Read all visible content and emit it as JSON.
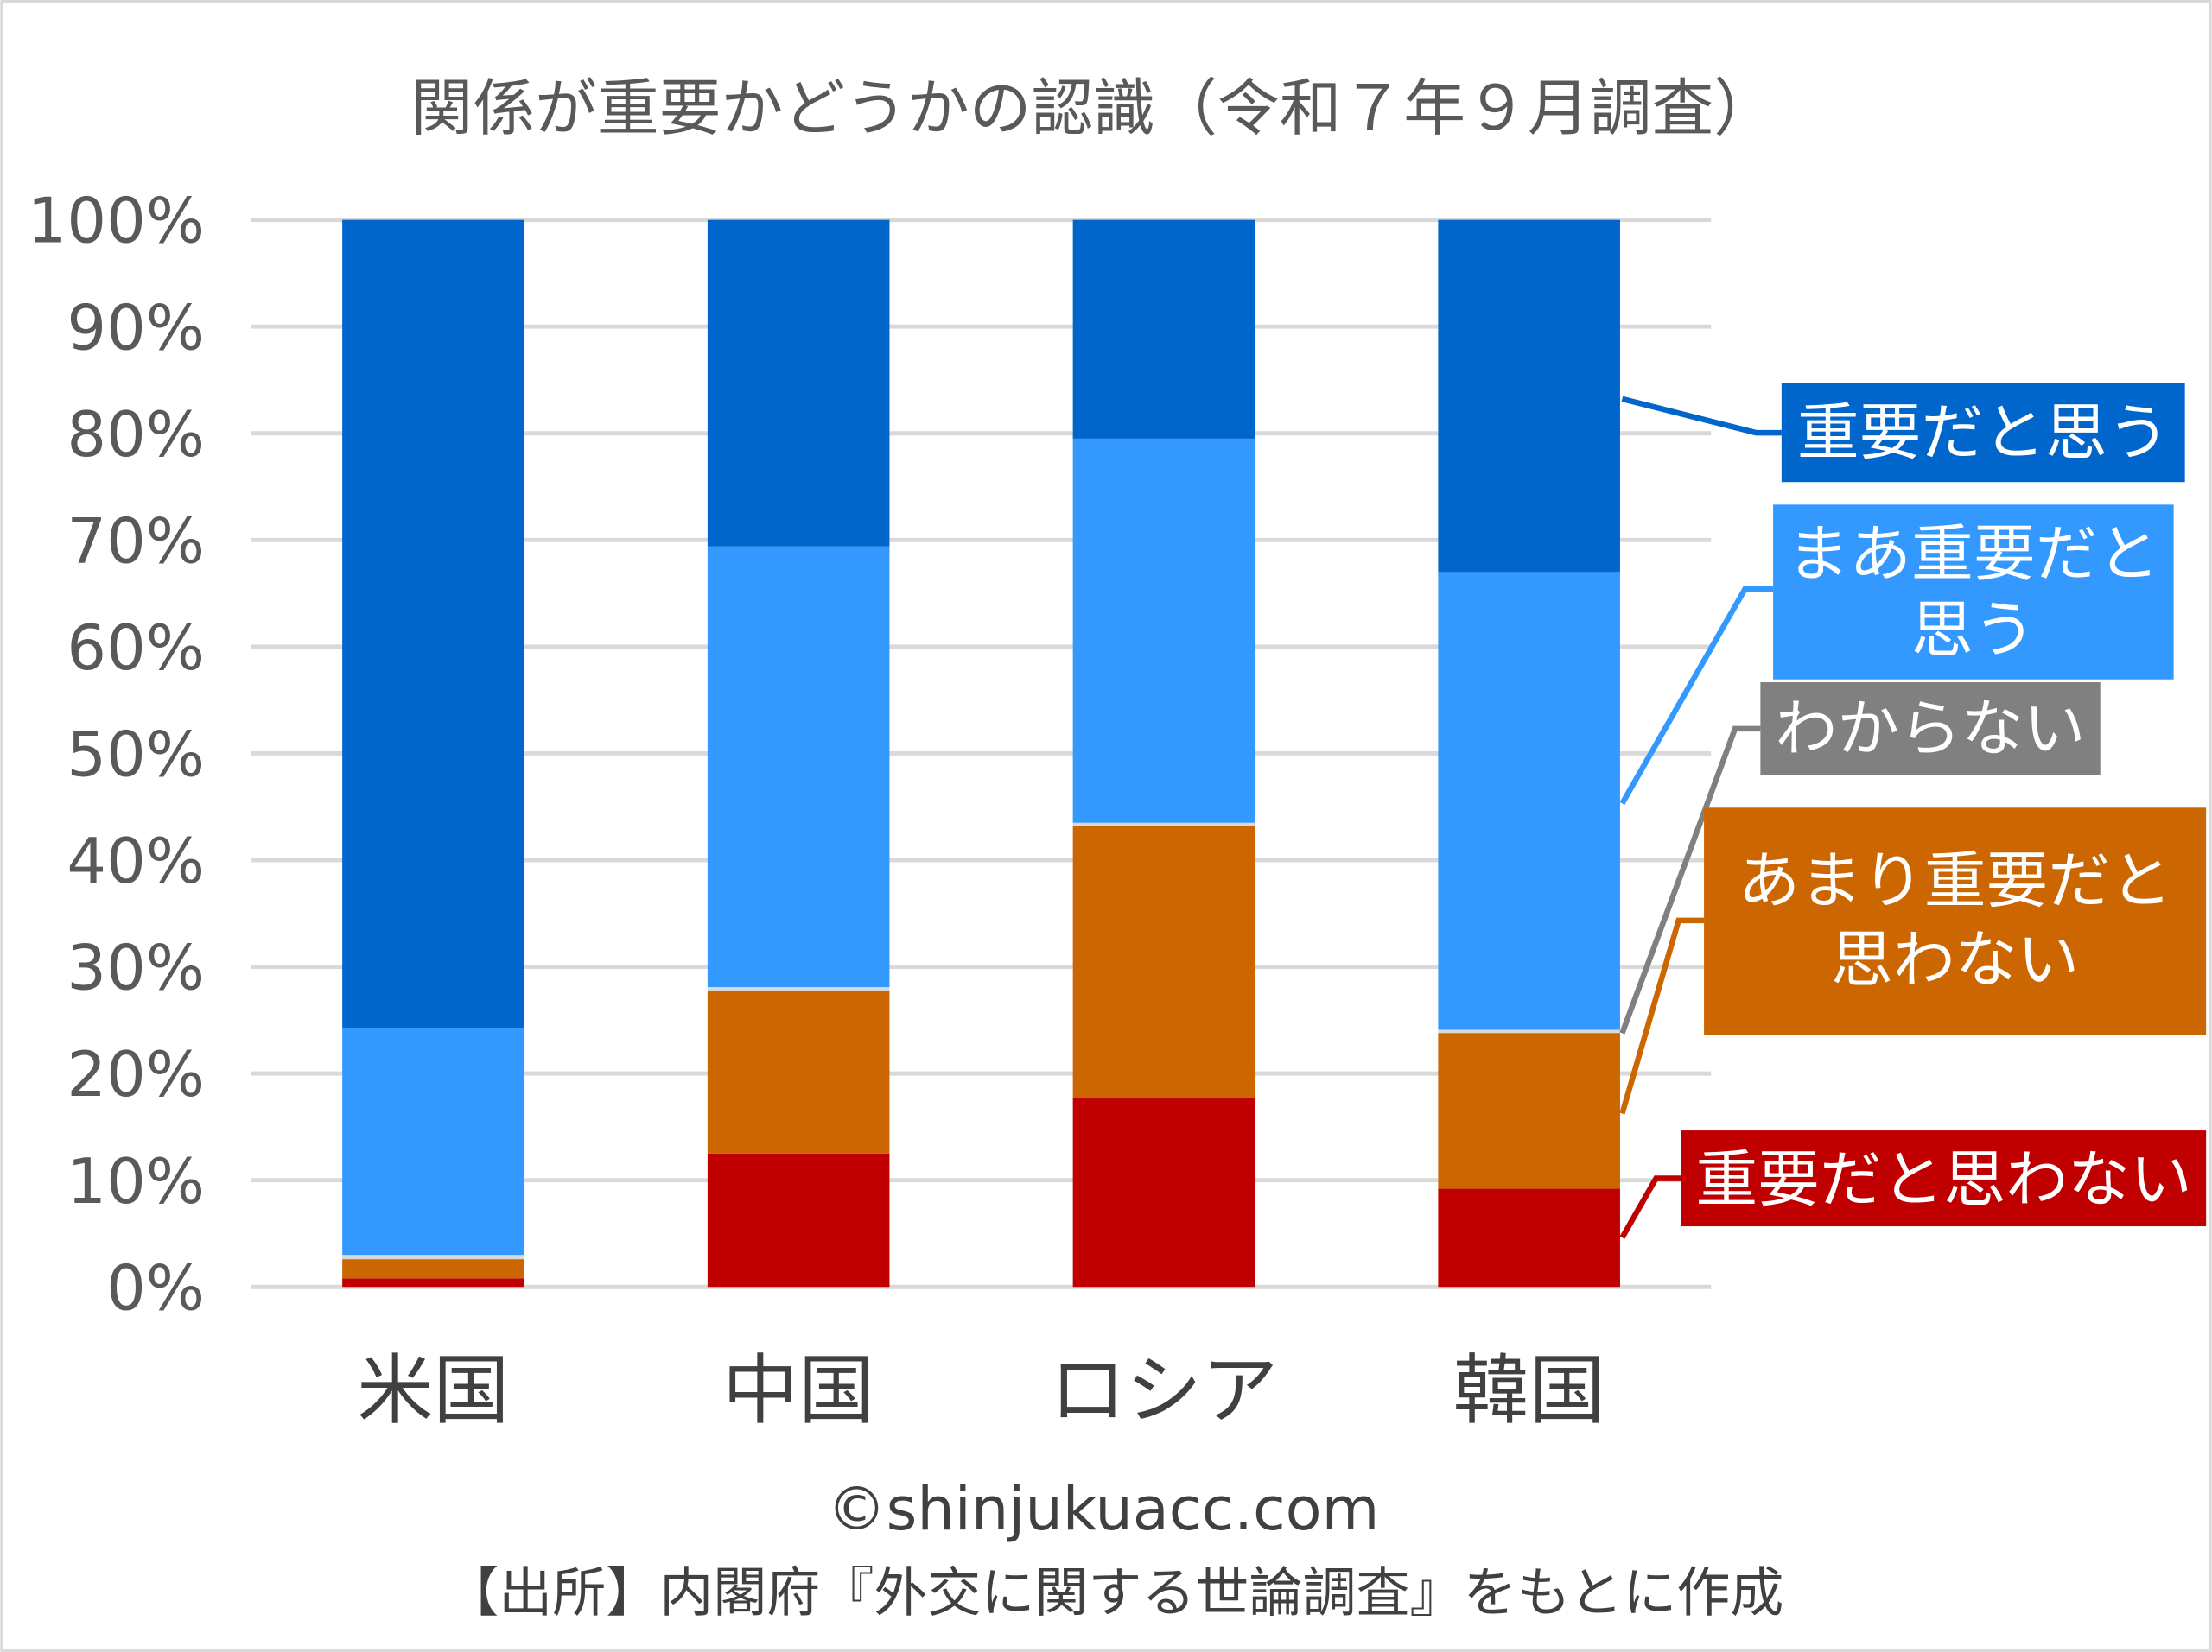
{
  "chart_data": {
    "type": "bar",
    "stacked": true,
    "percent": true,
    "title": "関係が重要かどうかの認識（令和７年９月調査）",
    "xlabel": "",
    "ylabel": "",
    "ylim": [
      0,
      100
    ],
    "yticks": [
      "0%",
      "10%",
      "20%",
      "30%",
      "40%",
      "50%",
      "60%",
      "70%",
      "80%",
      "90%",
      "100%"
    ],
    "categories": [
      "米国",
      "中国",
      "ロシア",
      "韓国"
    ],
    "series": [
      {
        "name": "重要だと思わない",
        "color": "#c00000",
        "values": [
          0.8,
          12.5,
          17.7,
          9.2
        ]
      },
      {
        "name": "あまり重要だと思わない",
        "color": "#cc6600",
        "values": [
          1.8,
          15.2,
          25.5,
          14.6
        ]
      },
      {
        "name": "わからない",
        "color": "#d9d9d9",
        "label_color": "#808080",
        "values": [
          0.4,
          0.4,
          0.3,
          0.3
        ]
      },
      {
        "name": "まあ重要だと思う",
        "color": "#3399ff",
        "values": [
          21.3,
          41.3,
          36.0,
          42.9
        ]
      },
      {
        "name": "重要だと思う",
        "color": "#0066cc",
        "values": [
          75.7,
          30.6,
          20.5,
          33.0
        ]
      }
    ],
    "legend_labels": [
      [
        "重要だと思う"
      ],
      [
        "まあ重要だと",
        "思う"
      ],
      [
        "わからない"
      ],
      [
        "あまり重要だと",
        "思わない"
      ],
      [
        "重要だと思わない"
      ]
    ],
    "grid": true,
    "legend": "right"
  },
  "footer": {
    "copyright": "©shinjukuacc.com",
    "source": "【出所】内閣府『外交に関する世論調査』をもとに作成"
  }
}
